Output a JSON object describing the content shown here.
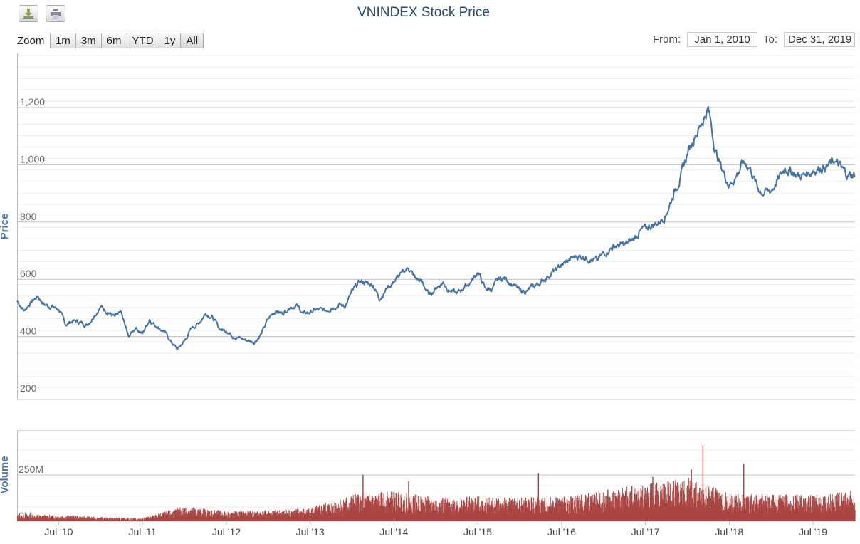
{
  "title": "VNINDEX Stock Price",
  "toolbar": {
    "download_icon": "download-icon",
    "print_icon": "print-icon"
  },
  "range_selector": {
    "zoom_label": "Zoom",
    "buttons": [
      "1m",
      "3m",
      "6m",
      "YTD",
      "1y",
      "All"
    ],
    "from_label": "From:",
    "from_value": "Jan 1, 2010",
    "to_label": "To:",
    "to_value": "Dec 31, 2019"
  },
  "colors": {
    "price_line": "#4572a7",
    "volume_bars": "#aa4643",
    "gridline": "#d8d8d8"
  },
  "chart_data": [
    {
      "type": "line",
      "ylabel": "Price",
      "y_ticks": [
        "1,200",
        "1,000",
        "800",
        "600",
        "400",
        "200"
      ],
      "ylim": [
        200,
        1200
      ],
      "x_range": [
        "2010-01-01",
        "2019-12-31"
      ],
      "x_ticks": [
        "Jul '10",
        "Jul '11",
        "Jul '12",
        "Jul '13",
        "Jul '14",
        "Jul '15",
        "Jul '16",
        "Jul '17",
        "Jul '18",
        "Jul '19"
      ],
      "x_tick_dates": [
        "2010-07-01",
        "2011-07-01",
        "2012-07-01",
        "2013-07-01",
        "2014-07-01",
        "2015-07-01",
        "2016-07-01",
        "2017-07-01",
        "2018-07-01",
        "2019-07-01"
      ],
      "series": [
        {
          "points": [
            [
              "2010-01-01",
              525
            ],
            [
              "2010-02-01",
              490
            ],
            [
              "2010-03-01",
              520
            ],
            [
              "2010-04-01",
              540
            ],
            [
              "2010-05-01",
              510
            ],
            [
              "2010-06-01",
              505
            ],
            [
              "2010-07-01",
              495
            ],
            [
              "2010-08-01",
              440
            ],
            [
              "2010-09-01",
              455
            ],
            [
              "2010-10-01",
              450
            ],
            [
              "2010-11-01",
              440
            ],
            [
              "2010-12-01",
              470
            ],
            [
              "2011-01-01",
              505
            ],
            [
              "2011-02-01",
              485
            ],
            [
              "2011-03-01",
              470
            ],
            [
              "2011-04-01",
              480
            ],
            [
              "2011-05-01",
              400
            ],
            [
              "2011-06-01",
              430
            ],
            [
              "2011-07-01",
              410
            ],
            [
              "2011-08-01",
              460
            ],
            [
              "2011-09-01",
              435
            ],
            [
              "2011-10-01",
              420
            ],
            [
              "2011-11-01",
              385
            ],
            [
              "2011-12-01",
              355
            ],
            [
              "2012-01-01",
              385
            ],
            [
              "2012-02-01",
              430
            ],
            [
              "2012-03-01",
              445
            ],
            [
              "2012-04-01",
              480
            ],
            [
              "2012-05-01",
              470
            ],
            [
              "2012-06-01",
              425
            ],
            [
              "2012-07-01",
              420
            ],
            [
              "2012-08-01",
              400
            ],
            [
              "2012-09-01",
              395
            ],
            [
              "2012-10-01",
              385
            ],
            [
              "2012-11-01",
              380
            ],
            [
              "2012-12-01",
              410
            ],
            [
              "2013-01-01",
              465
            ],
            [
              "2013-02-01",
              490
            ],
            [
              "2013-03-01",
              480
            ],
            [
              "2013-04-01",
              500
            ],
            [
              "2013-05-01",
              510
            ],
            [
              "2013-06-01",
              480
            ],
            [
              "2013-07-01",
              485
            ],
            [
              "2013-08-01",
              495
            ],
            [
              "2013-09-01",
              490
            ],
            [
              "2013-10-01",
              500
            ],
            [
              "2013-11-01",
              510
            ],
            [
              "2013-12-01",
              505
            ],
            [
              "2014-01-01",
              560
            ],
            [
              "2014-02-01",
              590
            ],
            [
              "2014-03-01",
              590
            ],
            [
              "2014-04-01",
              580
            ],
            [
              "2014-05-01",
              530
            ],
            [
              "2014-06-01",
              570
            ],
            [
              "2014-07-01",
              590
            ],
            [
              "2014-08-01",
              620
            ],
            [
              "2014-09-01",
              640
            ],
            [
              "2014-10-01",
              605
            ],
            [
              "2014-11-01",
              590
            ],
            [
              "2014-12-01",
              545
            ],
            [
              "2015-01-01",
              570
            ],
            [
              "2015-02-01",
              590
            ],
            [
              "2015-03-01",
              560
            ],
            [
              "2015-04-01",
              550
            ],
            [
              "2015-05-01",
              570
            ],
            [
              "2015-06-01",
              590
            ],
            [
              "2015-07-01",
              625
            ],
            [
              "2015-08-01",
              570
            ],
            [
              "2015-09-01",
              565
            ],
            [
              "2015-10-01",
              600
            ],
            [
              "2015-11-01",
              605
            ],
            [
              "2015-12-01",
              580
            ],
            [
              "2016-01-01",
              560
            ],
            [
              "2016-02-01",
              560
            ],
            [
              "2016-03-01",
              575
            ],
            [
              "2016-04-01",
              590
            ],
            [
              "2016-05-01",
              610
            ],
            [
              "2016-06-01",
              630
            ],
            [
              "2016-07-01",
              650
            ],
            [
              "2016-08-01",
              665
            ],
            [
              "2016-09-01",
              680
            ],
            [
              "2016-10-01",
              680
            ],
            [
              "2016-11-01",
              670
            ],
            [
              "2016-12-01",
              665
            ],
            [
              "2017-01-01",
              690
            ],
            [
              "2017-02-01",
              710
            ],
            [
              "2017-03-01",
              720
            ],
            [
              "2017-04-01",
              720
            ],
            [
              "2017-05-01",
              735
            ],
            [
              "2017-06-01",
              760
            ],
            [
              "2017-07-01",
              780
            ],
            [
              "2017-08-01",
              790
            ],
            [
              "2017-09-01",
              800
            ],
            [
              "2017-10-01",
              830
            ],
            [
              "2017-11-01",
              900
            ],
            [
              "2017-12-01",
              960
            ],
            [
              "2018-01-01",
              1040
            ],
            [
              "2018-02-01",
              1100
            ],
            [
              "2018-03-01",
              1140
            ],
            [
              "2018-04-01",
              1200
            ],
            [
              "2018-05-01",
              1050
            ],
            [
              "2018-06-01",
              980
            ],
            [
              "2018-07-01",
              930
            ],
            [
              "2018-08-01",
              960
            ],
            [
              "2018-09-01",
              1010
            ],
            [
              "2018-10-01",
              990
            ],
            [
              "2018-11-01",
              920
            ],
            [
              "2018-12-01",
              900
            ],
            [
              "2019-01-01",
              910
            ],
            [
              "2019-02-01",
              950
            ],
            [
              "2019-03-01",
              990
            ],
            [
              "2019-04-01",
              975
            ],
            [
              "2019-05-01",
              960
            ],
            [
              "2019-06-01",
              965
            ],
            [
              "2019-07-01",
              980
            ],
            [
              "2019-08-01",
              990
            ],
            [
              "2019-09-01",
              995
            ],
            [
              "2019-10-01",
              1010
            ],
            [
              "2019-11-01",
              990
            ],
            [
              "2019-12-01",
              962
            ],
            [
              "2019-12-31",
              965
            ]
          ]
        }
      ]
    },
    {
      "type": "bar",
      "ylabel": "Volume",
      "y_ticks": [
        "250M",
        "0M"
      ],
      "ylim": [
        0,
        500000000
      ],
      "x_range": [
        "2010-01-01",
        "2019-12-31"
      ],
      "series": [
        {
          "monthly_typical": [
            [
              "2010-01-01",
              28000000
            ],
            [
              "2010-07-01",
              26000000
            ],
            [
              "2011-01-01",
              17000000
            ],
            [
              "2011-07-01",
              13000000
            ],
            [
              "2012-01-01",
              62000000
            ],
            [
              "2012-07-01",
              40000000
            ],
            [
              "2013-01-01",
              45000000
            ],
            [
              "2013-07-01",
              55000000
            ],
            [
              "2014-01-01",
              110000000
            ],
            [
              "2014-07-01",
              120000000
            ],
            [
              "2015-01-01",
              95000000
            ],
            [
              "2015-07-01",
              100000000
            ],
            [
              "2016-01-01",
              95000000
            ],
            [
              "2016-07-01",
              100000000
            ],
            [
              "2017-01-01",
              125000000
            ],
            [
              "2017-07-01",
              150000000
            ],
            [
              "2018-01-01",
              175000000
            ],
            [
              "2018-07-01",
              115000000
            ],
            [
              "2019-01-01",
              110000000
            ],
            [
              "2019-07-01",
              105000000
            ],
            [
              "2019-12-31",
              125000000
            ]
          ],
          "peaks": [
            [
              "2014-02-15",
              250000000
            ],
            [
              "2014-09-01",
              215000000
            ],
            [
              "2016-03-20",
              260000000
            ],
            [
              "2017-08-01",
              240000000
            ],
            [
              "2018-01-15",
              280000000
            ],
            [
              "2018-03-07",
              410000000
            ],
            [
              "2018-09-01",
              310000000
            ]
          ]
        }
      ]
    }
  ]
}
